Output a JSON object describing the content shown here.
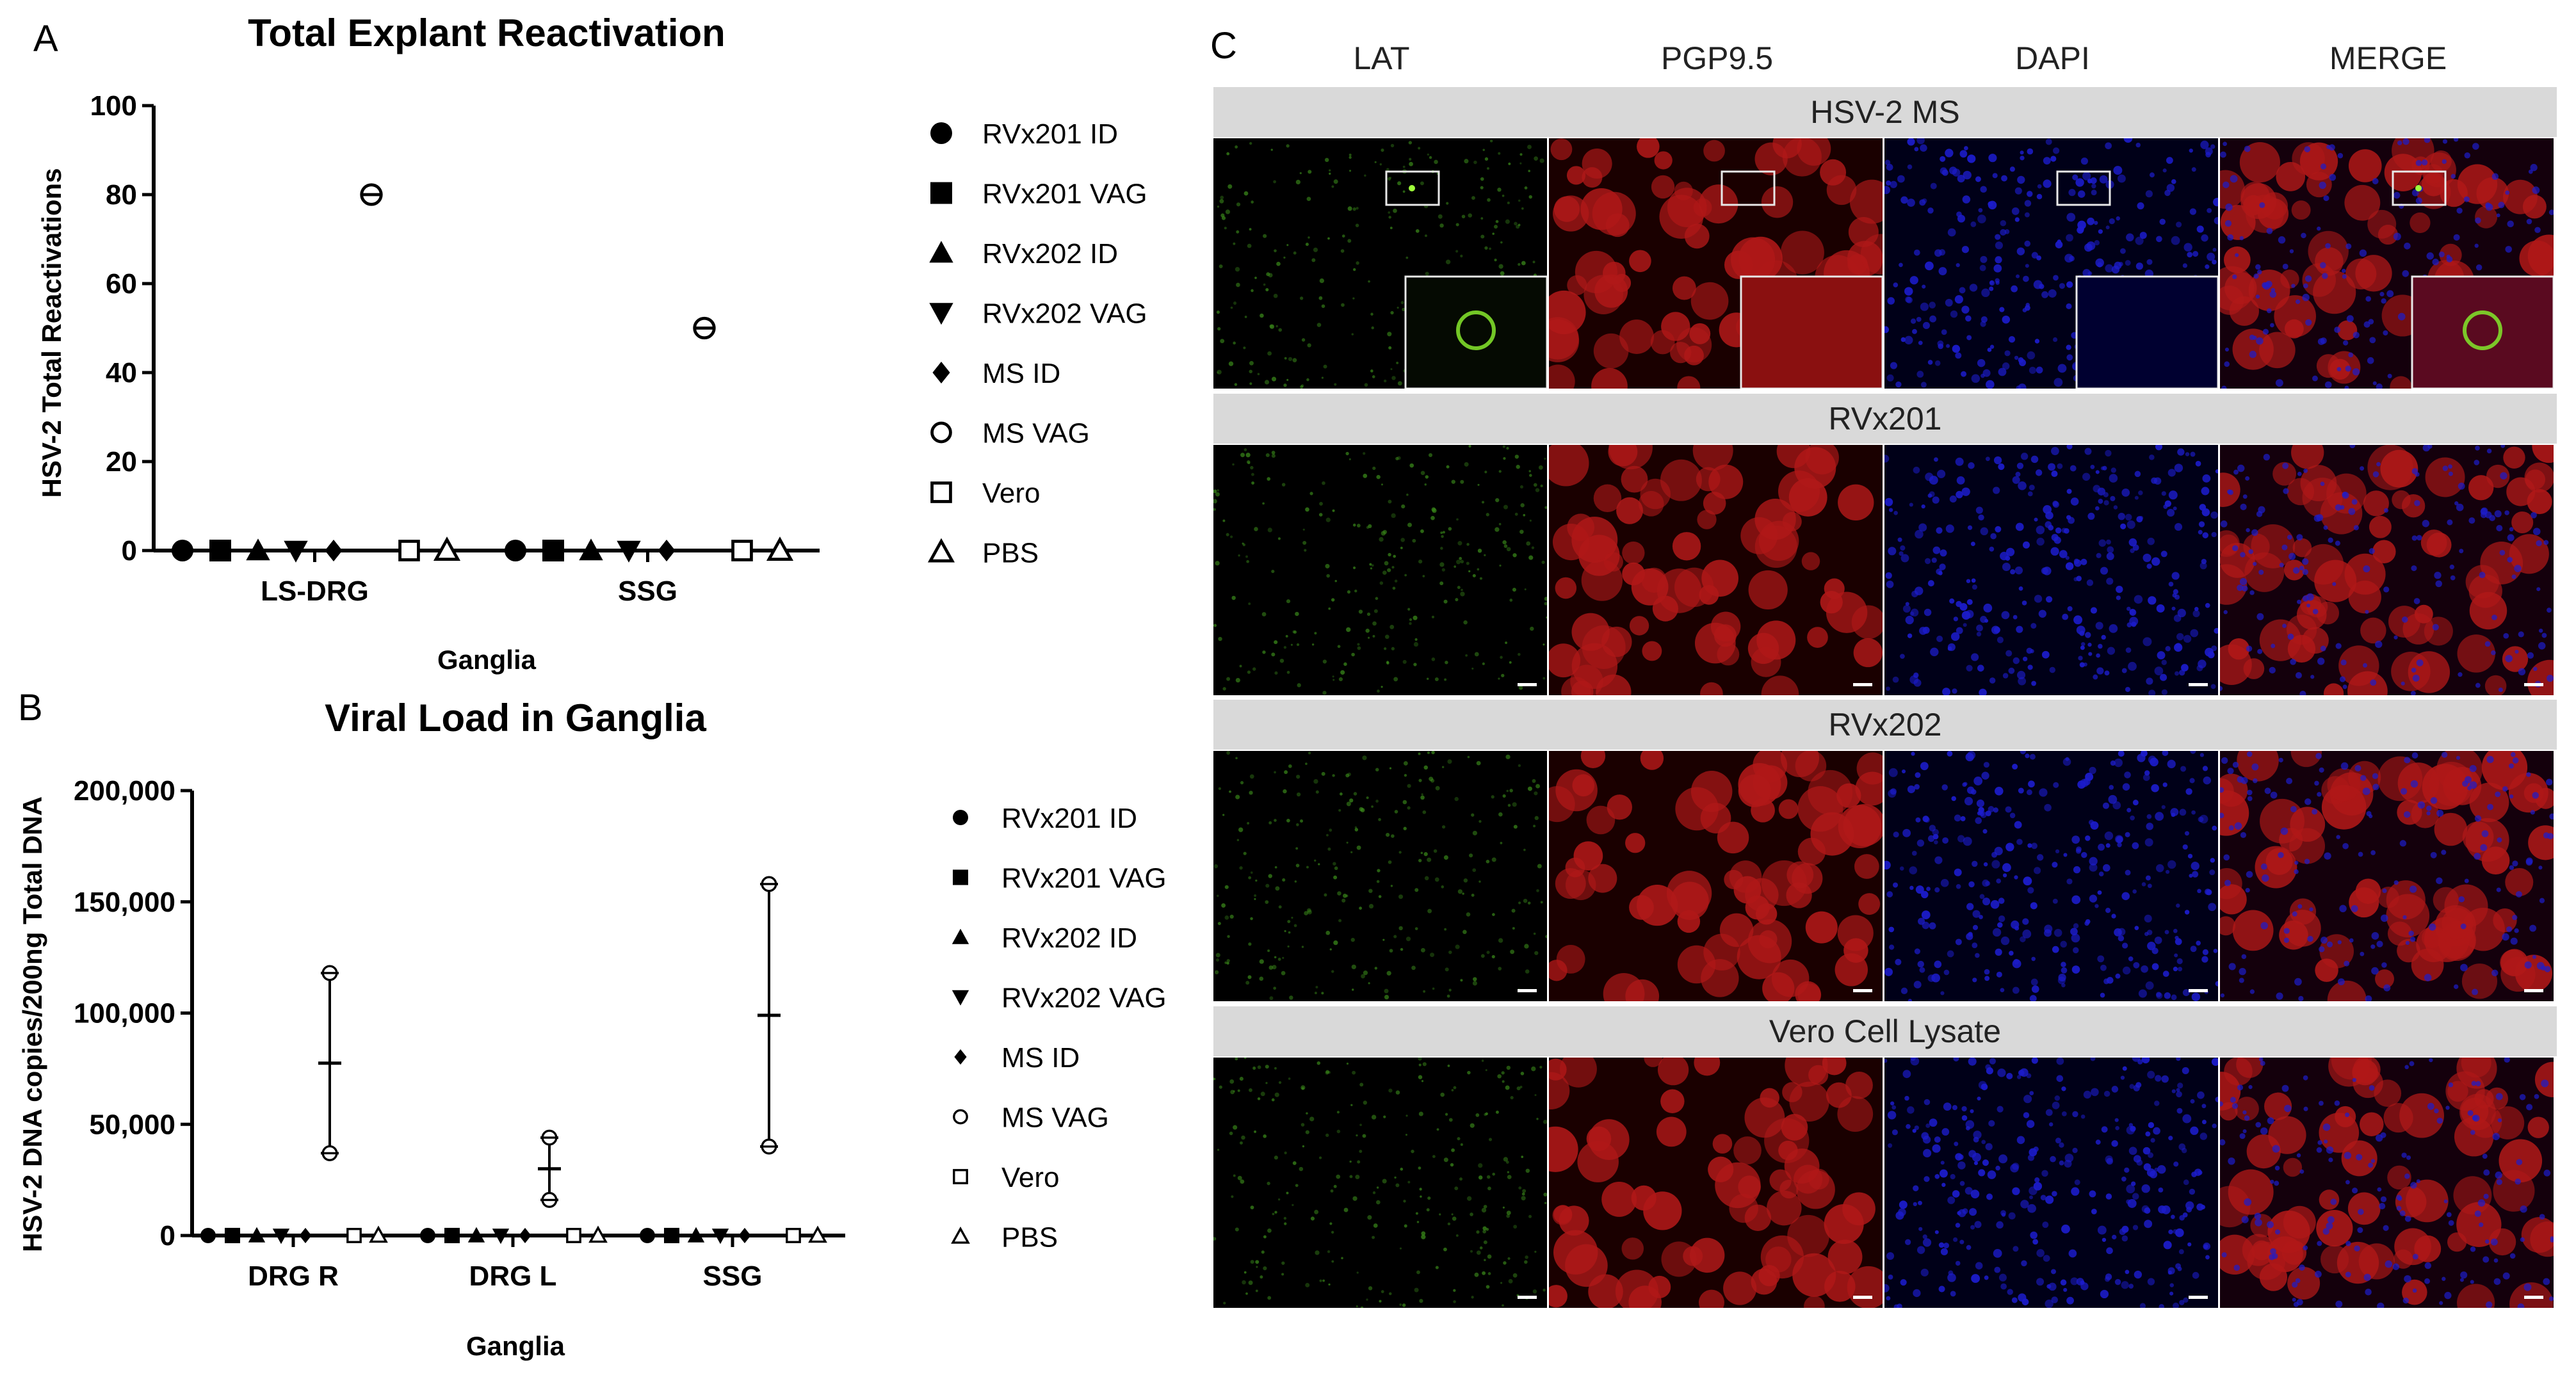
{
  "colors": {
    "lat": "#3a8a1a",
    "pgp": "#b01818",
    "dapi": "#1c1ccc",
    "merge": "#9a1a3a",
    "header_bg": "#d9d9d9"
  },
  "panels": {
    "a": "A",
    "b": "B",
    "c": "C"
  },
  "legend": [
    {
      "label": "RVx201 ID",
      "marker": "circle-filled"
    },
    {
      "label": "RVx201 VAG",
      "marker": "square-filled"
    },
    {
      "label": "RVx202 ID",
      "marker": "triangle-up-filled"
    },
    {
      "label": "RVx202 VAG",
      "marker": "triangle-down-filled"
    },
    {
      "label": "MS ID",
      "marker": "diamond-filled"
    },
    {
      "label": "MS VAG",
      "marker": "circle-open-line"
    },
    {
      "label": "Vero",
      "marker": "square-open"
    },
    {
      "label": "PBS",
      "marker": "triangle-up-open"
    }
  ],
  "chart_data": [
    {
      "type": "scatter",
      "title": "Total Explant Reactivation",
      "xlabel": "Ganglia",
      "ylabel": "HSV-2 Total Reactivations",
      "categories": [
        "LS-DRG",
        "SSG"
      ],
      "ylim": [
        0,
        100
      ],
      "yticks": [
        "0",
        "20",
        "40",
        "60",
        "80",
        "100"
      ],
      "series": [
        {
          "name": "RVx201 ID",
          "values": [
            0,
            0
          ]
        },
        {
          "name": "RVx201 VAG",
          "values": [
            0,
            0
          ]
        },
        {
          "name": "RVx202 ID",
          "values": [
            0,
            0
          ]
        },
        {
          "name": "RVx202 VAG",
          "values": [
            0,
            0
          ]
        },
        {
          "name": "MS ID",
          "values": [
            0,
            0
          ]
        },
        {
          "name": "MS VAG",
          "values": [
            80,
            50
          ]
        },
        {
          "name": "Vero",
          "values": [
            0,
            0
          ]
        },
        {
          "name": "PBS",
          "values": [
            0,
            0
          ]
        }
      ]
    },
    {
      "type": "scatter",
      "title": "Viral Load in Ganglia",
      "xlabel": "Ganglia",
      "ylabel": "HSV-2 DNA copies/200ng Total DNA",
      "categories": [
        "DRG R",
        "DRG L",
        "SSG"
      ],
      "ylim": [
        0,
        200000
      ],
      "yticks": [
        "0",
        "50,000",
        "100,000",
        "150,000",
        "200,000"
      ],
      "series": [
        {
          "name": "RVx201 ID",
          "values": [
            0,
            0,
            0
          ]
        },
        {
          "name": "RVx201 VAG",
          "values": [
            0,
            0,
            0
          ]
        },
        {
          "name": "RVx202 ID",
          "values": [
            0,
            0,
            0
          ]
        },
        {
          "name": "RVx202 VAG",
          "values": [
            0,
            0,
            0
          ]
        },
        {
          "name": "MS ID",
          "values": [
            0,
            0,
            0
          ]
        },
        {
          "name": "MS VAG",
          "points": [
            [
              118000,
              37000
            ],
            [
              44000,
              16000
            ],
            [
              158000,
              40000
            ]
          ],
          "mean": [
            77500,
            30000,
            99000
          ]
        },
        {
          "name": "Vero",
          "values": [
            0,
            0,
            0
          ]
        },
        {
          "name": "PBS",
          "values": [
            0,
            0,
            0
          ]
        }
      ]
    }
  ],
  "microscopy": {
    "columns": [
      "LAT",
      "PGP9.5",
      "DAPI",
      "MERGE"
    ],
    "rows": [
      "HSV-2 MS",
      "RVx201",
      "RVx202",
      "Vero Cell Lysate"
    ]
  }
}
